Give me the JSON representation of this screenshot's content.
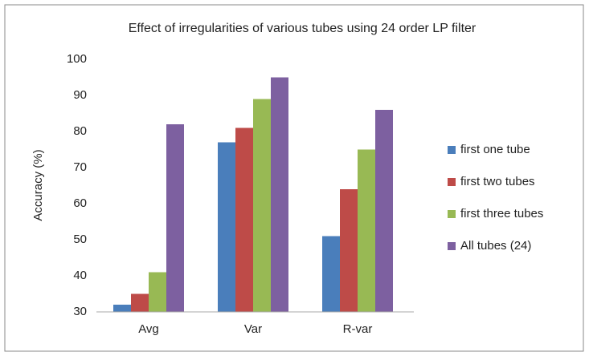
{
  "chart_data": {
    "type": "bar",
    "title": "Effect of irregularities of various tubes using 24 order LP filter",
    "y_label": "Accuracy (%)",
    "categories": [
      "Avg",
      "Var",
      "R-var"
    ],
    "series": [
      {
        "name": "first one tube",
        "color": "#4a7ebb",
        "values": [
          32,
          77,
          51
        ]
      },
      {
        "name": "first two tubes",
        "color": "#be4b48",
        "values": [
          35,
          81,
          64
        ]
      },
      {
        "name": "first three tubes",
        "color": "#98b954",
        "values": [
          41,
          89,
          75
        ]
      },
      {
        "name": "All tubes (24)",
        "color": "#7d60a0",
        "values": [
          82,
          95,
          86
        ]
      }
    ],
    "ylim": [
      30,
      100
    ],
    "yticks": [
      30,
      40,
      50,
      60,
      70,
      80,
      90,
      100
    ],
    "grid": false,
    "legend": "right"
  }
}
